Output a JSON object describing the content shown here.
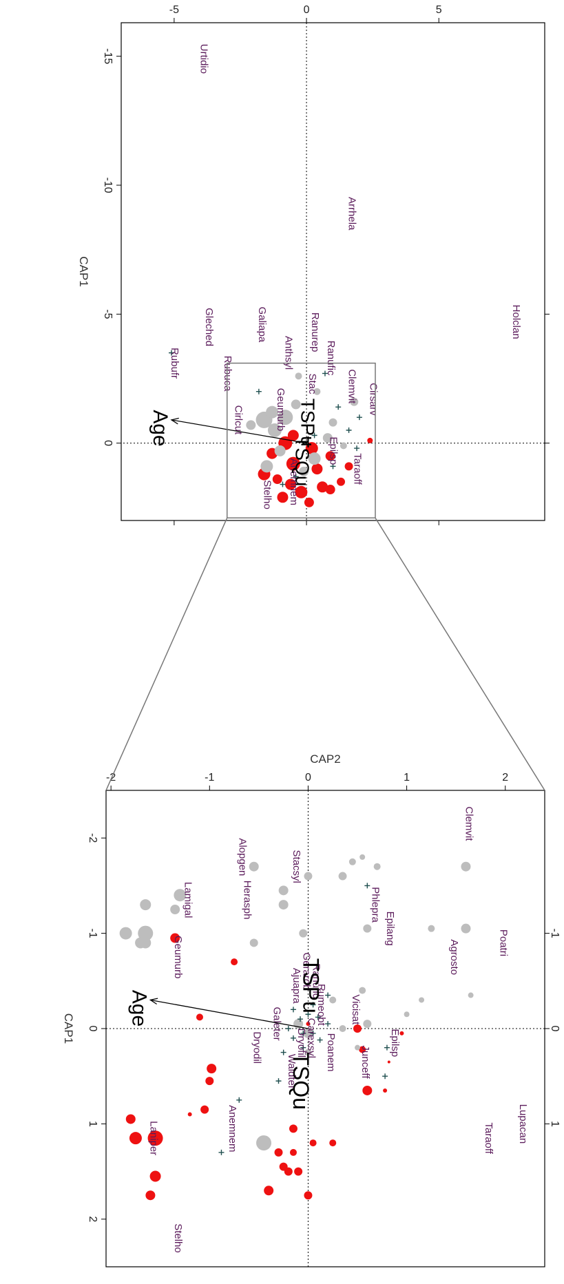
{
  "chart_data": [
    {
      "type": "scatter",
      "panel": "full",
      "xlabel": "CAP1",
      "ylabel": "CAP2",
      "xlim": [
        -16.3,
        3.0
      ],
      "ylim": [
        -7.0,
        9.0
      ],
      "xticks": [
        -15,
        -10,
        -5,
        0
      ],
      "xtick_labels": [
        "-15",
        "-10",
        "-5",
        "0"
      ],
      "yticks": [
        -5,
        0,
        5
      ],
      "ytick_labels": [
        "-5",
        "0",
        "5"
      ],
      "top_ticks": [
        -5,
        0
      ],
      "right_ticks": [
        -5,
        0,
        5
      ],
      "origin_lines": true,
      "species": [
        {
          "label": "Holclan",
          "x": -4.7,
          "y": 7.8
        },
        {
          "label": "Arrhela",
          "x": -8.9,
          "y": 1.6
        },
        {
          "label": "Urtidio",
          "x": -14.9,
          "y": -4.0
        },
        {
          "label": "Taraoff",
          "x": 1.0,
          "y": 1.8
        },
        {
          "label": "Cirsarv",
          "x": -1.7,
          "y": 2.4
        },
        {
          "label": "Clemvit",
          "x": -2.2,
          "y": 1.6
        },
        {
          "label": "Ranufic",
          "x": -3.3,
          "y": 0.8
        },
        {
          "label": "Ranurep",
          "x": -4.3,
          "y": 0.2
        },
        {
          "label": "Anthsyl",
          "x": -3.5,
          "y": -0.8
        },
        {
          "label": "Galiapa",
          "x": -4.6,
          "y": -1.8
        },
        {
          "label": "Gleched",
          "x": -4.5,
          "y": -3.8
        },
        {
          "label": "Rubuca",
          "x": -2.7,
          "y": -3.1
        },
        {
          "label": "Cirlcut",
          "x": -0.9,
          "y": -2.7
        },
        {
          "label": "Rubufr",
          "x": -3.1,
          "y": -5.1
        },
        {
          "label": "Stelho",
          "x": 2.0,
          "y": -1.6
        },
        {
          "label": "Epilsp",
          "x": 0.3,
          "y": 0.9
        },
        {
          "label": "Geumurb",
          "x": -1.3,
          "y": -1.1
        },
        {
          "label": "Anemnem",
          "x": 1.5,
          "y": -0.6
        },
        {
          "label": "Stac",
          "x": -2.3,
          "y": 0.1
        }
      ],
      "centroid_labels": [
        "TSPu",
        "TSQu"
      ],
      "vector": {
        "label": "Age",
        "x_end": -0.9,
        "y_end": -5.1
      },
      "zoom_box": {
        "xlim": [
          -3.1,
          2.9
        ],
        "ylim": [
          -3.0,
          2.6
        ]
      }
    },
    {
      "type": "scatter",
      "panel": "zoom",
      "xlabel": "CAP1",
      "ylabel": "CAP2",
      "xlim": [
        -2.5,
        2.5
      ],
      "ylim": [
        -2.05,
        2.4
      ],
      "xticks": [
        -2,
        -1,
        0,
        1,
        2
      ],
      "xtick_labels": [
        "-2",
        "-1",
        "0",
        "1",
        "2"
      ],
      "yticks": [
        -2,
        -1,
        0,
        1,
        2
      ],
      "ytick_labels": [
        "-2",
        "-1",
        "0",
        "1",
        "2"
      ],
      "top_ticks": [
        -1,
        0,
        1
      ],
      "top_tick_labels": [
        "-1",
        "0",
        "1"
      ],
      "origin_lines": true,
      "species": [
        {
          "label": "Lupacan",
          "x": 1.0,
          "y": 2.15
        },
        {
          "label": "Taraoff",
          "x": 1.15,
          "y": 1.8
        },
        {
          "label": "Poatri",
          "x": -0.9,
          "y": 1.95
        },
        {
          "label": "Agrosto",
          "x": -0.75,
          "y": 1.45
        },
        {
          "label": "Clemvit",
          "x": -2.15,
          "y": 1.6
        },
        {
          "label": "Epilsp",
          "x": 0.15,
          "y": 0.85
        },
        {
          "label": "Junceff",
          "x": 0.35,
          "y": 0.55
        },
        {
          "label": "Poanem",
          "x": 0.25,
          "y": 0.2
        },
        {
          "label": "Vicisat",
          "x": -0.2,
          "y": 0.45
        },
        {
          "label": "Epilang",
          "x": -1.05,
          "y": 0.8
        },
        {
          "label": "Phlepra",
          "x": -1.3,
          "y": 0.65
        },
        {
          "label": "Stacsyl",
          "x": -1.7,
          "y": -0.15
        },
        {
          "label": "Alopgen",
          "x": -1.8,
          "y": -0.7
        },
        {
          "label": "Herasph",
          "x": -1.35,
          "y": -0.65
        },
        {
          "label": "Lamigal",
          "x": -1.35,
          "y": -1.25
        },
        {
          "label": "Geumurb",
          "x": -0.75,
          "y": -1.35
        },
        {
          "label": "Dryodil",
          "x": 0.2,
          "y": -0.55
        },
        {
          "label": "Waldter",
          "x": 0.45,
          "y": -0.2
        },
        {
          "label": "Anemnem",
          "x": 1.05,
          "y": -0.8
        },
        {
          "label": "Laniper",
          "x": 1.15,
          "y": -1.6
        },
        {
          "label": "Stelho",
          "x": 2.2,
          "y": -1.35
        },
        {
          "label": "Galeter",
          "x": -0.05,
          "y": -0.35
        },
        {
          "label": "Rumeobt",
          "x": -0.25,
          "y": 0.1
        },
        {
          "label": "Ranufic",
          "x": -0.5,
          "y": 0.05
        },
        {
          "label": "Carexsyl",
          "x": 0.1,
          "y": 0.0
        },
        {
          "label": "Dryofil",
          "x": 0.15,
          "y": -0.1
        },
        {
          "label": "Gerarob",
          "x": -0.6,
          "y": -0.05
        },
        {
          "label": "Ajuapra",
          "x": -0.45,
          "y": -0.15
        }
      ],
      "centroid_labels": [
        "TSPu",
        "TSQu"
      ],
      "vector": {
        "label": "Age",
        "x_end": -0.3,
        "y_end": -1.6
      }
    }
  ]
}
